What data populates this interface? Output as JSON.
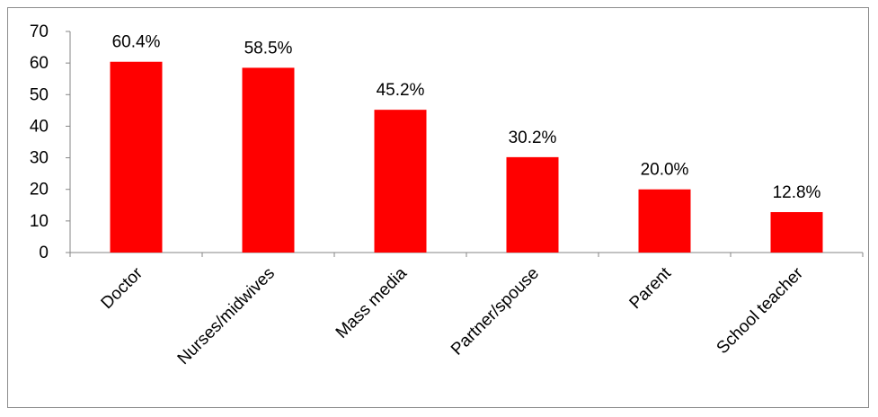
{
  "chart_data": {
    "type": "bar",
    "title": "",
    "xlabel": "",
    "ylabel": "",
    "categories": [
      "Doctor",
      "Nurses/midwives",
      "Mass media",
      "Partner/spouse",
      "Parent",
      "School teacher"
    ],
    "values": [
      60.4,
      58.5,
      45.2,
      30.2,
      20.0,
      12.8
    ],
    "data_labels": [
      "60.4%",
      "58.5%",
      "45.2%",
      "30.2%",
      "20.0%",
      "12.8%"
    ],
    "ylim": [
      0,
      70
    ],
    "y_ticks": [
      "0",
      "10",
      "20",
      "30",
      "40",
      "50",
      "60",
      "70"
    ],
    "bar_color": "#ff0000",
    "grid": false,
    "legend": "none"
  }
}
